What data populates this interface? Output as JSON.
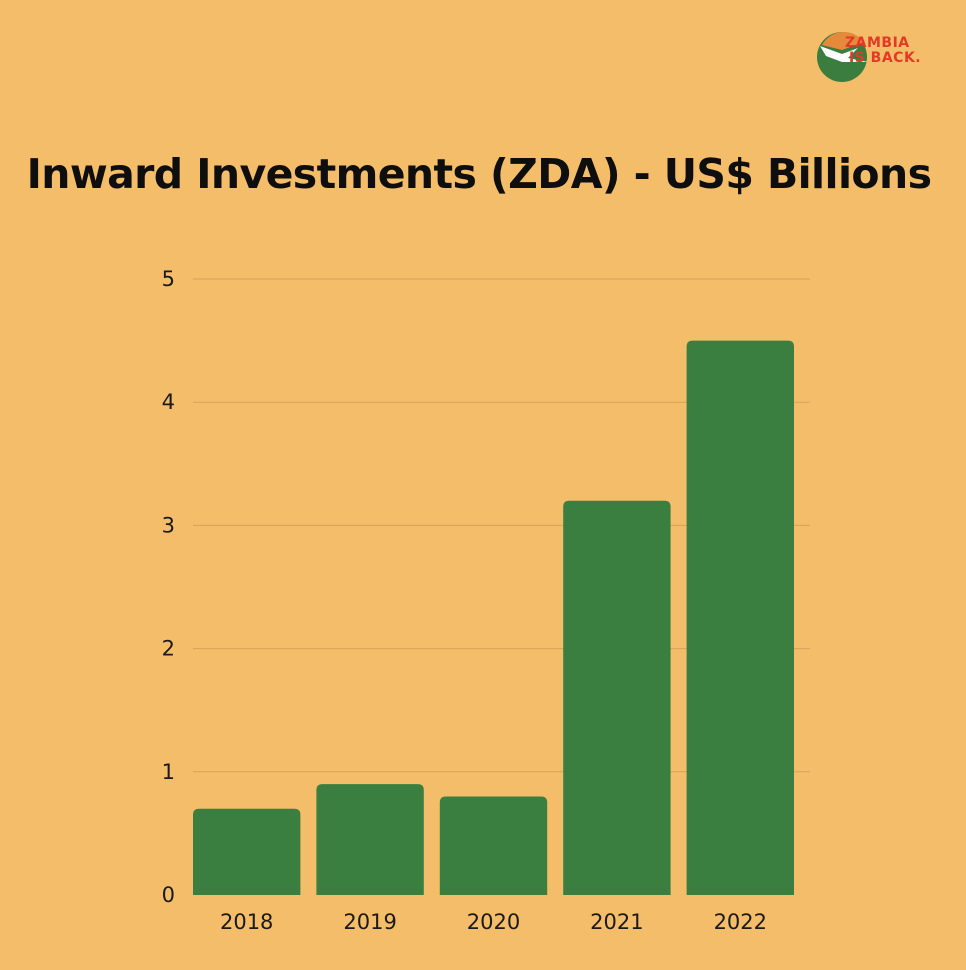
{
  "brand": {
    "line1": "ZAMBIA",
    "line2": "IS BACK.",
    "circle_color": "#3a7d3f",
    "accent_color": "#e58a3a",
    "text_color": "#e23a26"
  },
  "colors": {
    "background": "#f4bd69",
    "bar": "#3a7f40",
    "grid": "#d9a05a"
  },
  "chart_data": {
    "type": "bar",
    "title": "Inward Investments (ZDA) - US$ Billions",
    "categories": [
      "2018",
      "2019",
      "2020",
      "2021",
      "2022"
    ],
    "values": [
      0.7,
      0.9,
      0.8,
      3.2,
      4.5
    ],
    "yticks": [
      "0",
      "1",
      "2",
      "3",
      "4",
      "5"
    ],
    "ylim": [
      0,
      5
    ],
    "grid": true,
    "legend": "none",
    "xlabel": "",
    "ylabel": ""
  }
}
